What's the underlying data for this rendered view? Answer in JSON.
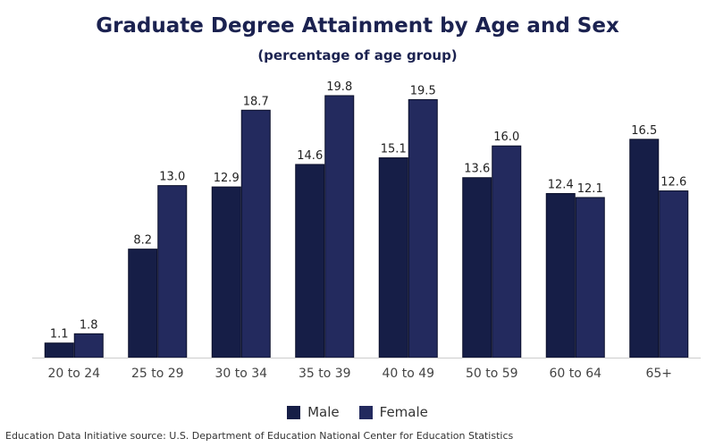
{
  "chart_data": {
    "type": "bar",
    "title": "Graduate Degree Attainment by Age and Sex",
    "subtitle": "(percentage of age group)",
    "categories": [
      "20 to 24",
      "25 to 29",
      "30 to 34",
      "35 to 39",
      "40 to 49",
      "50 to 59",
      "60 to 64",
      "65+"
    ],
    "series": [
      {
        "name": "Male",
        "color": "#161e47",
        "values": [
          1.1,
          8.2,
          12.9,
          14.6,
          15.1,
          13.6,
          12.4,
          16.5
        ]
      },
      {
        "name": "Female",
        "color": "#232a5e",
        "values": [
          1.8,
          13.0,
          18.7,
          19.8,
          19.5,
          16.0,
          12.1,
          12.6
        ]
      }
    ],
    "ylim": [
      0,
      20
    ],
    "grid": false,
    "legend_position": "bottom",
    "source": "Education Data Initiative source: U.S. Department of Education National Center for Education Statistics"
  }
}
